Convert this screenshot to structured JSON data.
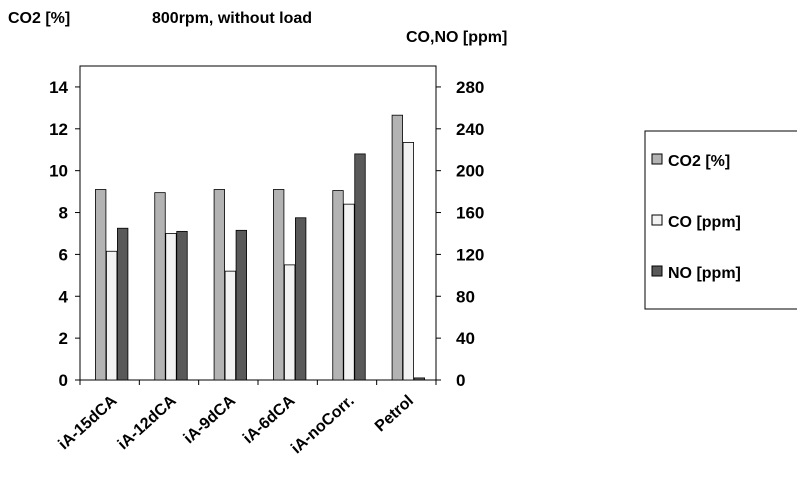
{
  "chart_data": {
    "type": "bar",
    "title": "800rpm, without load",
    "ylabel_left": "CO2 [%]",
    "ylabel_right": "CO,NO [ppm]",
    "categories": [
      "iA-15dCA",
      "iA-12dCA",
      "iA-9dCA",
      "iA-6dCA",
      "iA-noCorr.",
      "Petrol"
    ],
    "ylim_left": [
      0,
      15
    ],
    "yticks_left": [
      "0",
      "2",
      "4",
      "6",
      "8",
      "10",
      "12",
      "14"
    ],
    "ylim_right": [
      0,
      300
    ],
    "yticks_right": [
      "0",
      "40",
      "80",
      "120",
      "160",
      "200",
      "240",
      "280"
    ],
    "grid": false,
    "legend_position": "right",
    "series": [
      {
        "name": "CO2 [%]",
        "axis": "left",
        "color": "#b3b3b3",
        "values": [
          9.1,
          8.95,
          9.1,
          9.1,
          9.05,
          12.65
        ]
      },
      {
        "name": "CO [ppm]",
        "axis": "right",
        "color": "#f2f2f2",
        "values": [
          123,
          140,
          104,
          110,
          168,
          227
        ]
      },
      {
        "name": "NO [ppm]",
        "axis": "right",
        "color": "#595959",
        "values": [
          145,
          142,
          143,
          155,
          216,
          2
        ]
      }
    ]
  }
}
